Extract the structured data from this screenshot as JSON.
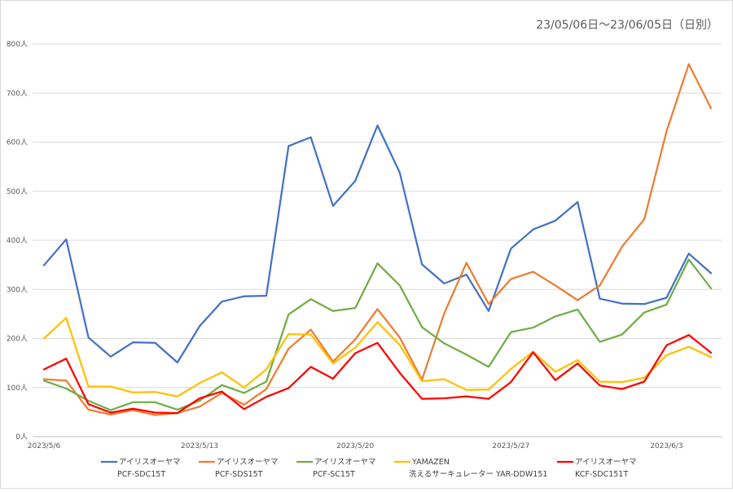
{
  "chart_data": {
    "type": "line",
    "subtitle": "23/05/06日～23/06/05日（日別）",
    "y_unit": "人",
    "ylim": [
      0,
      800
    ],
    "yticks": [
      0,
      100,
      200,
      300,
      400,
      500,
      600,
      700,
      800
    ],
    "ytick_labels": [
      "0人",
      "100人",
      "200人",
      "300人",
      "400人",
      "500人",
      "600人",
      "700人",
      "800人"
    ],
    "x": [
      "2023/5/6",
      "2023/5/7",
      "2023/5/8",
      "2023/5/9",
      "2023/5/10",
      "2023/5/11",
      "2023/5/12",
      "2023/5/13",
      "2023/5/14",
      "2023/5/15",
      "2023/5/16",
      "2023/5/17",
      "2023/5/18",
      "2023/5/19",
      "2023/5/20",
      "2023/5/21",
      "2023/5/22",
      "2023/5/23",
      "2023/5/24",
      "2023/5/25",
      "2023/5/26",
      "2023/5/27",
      "2023/5/28",
      "2023/5/29",
      "2023/5/30",
      "2023/5/31",
      "2023/6/1",
      "2023/6/2",
      "2023/6/3",
      "2023/6/4",
      "2023/6/5"
    ],
    "xtick_labels": [
      {
        "index": 0,
        "label": "2023/5/6"
      },
      {
        "index": 7,
        "label": "2023/5/13"
      },
      {
        "index": 14,
        "label": "2023/5/20"
      },
      {
        "index": 21,
        "label": "2023/5/27"
      },
      {
        "index": 28,
        "label": "2023/6/3"
      }
    ],
    "grid": true,
    "legend_position": "bottom",
    "series": [
      {
        "name_line1": "アイリスオーヤマ",
        "name_line2": "PCF-SDC15T",
        "color": "#4472C4",
        "values": [
          349,
          402,
          202,
          163,
          192,
          191,
          151,
          225,
          275,
          286,
          287,
          592,
          610,
          470,
          521,
          634,
          538,
          351,
          312,
          330,
          256,
          383,
          422,
          440,
          478,
          281,
          271,
          270,
          283,
          373,
          333
        ]
      },
      {
        "name_line1": "アイリスオーヤマ",
        "name_line2": "PCF-SDS15T",
        "color": "#ED7D31",
        "values": [
          117,
          114,
          55,
          45,
          54,
          44,
          48,
          61,
          89,
          65,
          97,
          179,
          218,
          153,
          198,
          260,
          202,
          116,
          251,
          354,
          270,
          321,
          336,
          308,
          278,
          308,
          387,
          443,
          622,
          759,
          669
        ]
      },
      {
        "name_line1": "アイリスオーヤマ",
        "name_line2": "PCF-SC15T",
        "color": "#70AD47",
        "values": [
          114,
          98,
          73,
          54,
          70,
          70,
          55,
          73,
          105,
          89,
          112,
          249,
          280,
          256,
          262,
          353,
          308,
          223,
          190,
          167,
          142,
          213,
          222,
          245,
          259,
          193,
          208,
          253,
          269,
          361,
          302
        ]
      },
      {
        "name_line1": "YAMAZEN",
        "name_line2": "洗えるサーキュレーター YAR-DDW151",
        "color": "#FFC000",
        "values": [
          200,
          242,
          102,
          102,
          90,
          91,
          82,
          109,
          131,
          100,
          137,
          209,
          208,
          149,
          181,
          233,
          187,
          113,
          117,
          95,
          96,
          138,
          173,
          132,
          156,
          112,
          111,
          120,
          166,
          183,
          162
        ]
      },
      {
        "name_line1": "アイリスオーヤマ",
        "name_line2": "KCF-SDC151T",
        "color": "#FF0000",
        "values": [
          137,
          159,
          66,
          49,
          57,
          49,
          48,
          78,
          92,
          56,
          81,
          99,
          142,
          118,
          170,
          191,
          130,
          77,
          78,
          82,
          77,
          111,
          172,
          115,
          149,
          104,
          97,
          112,
          186,
          207,
          171
        ]
      }
    ]
  }
}
